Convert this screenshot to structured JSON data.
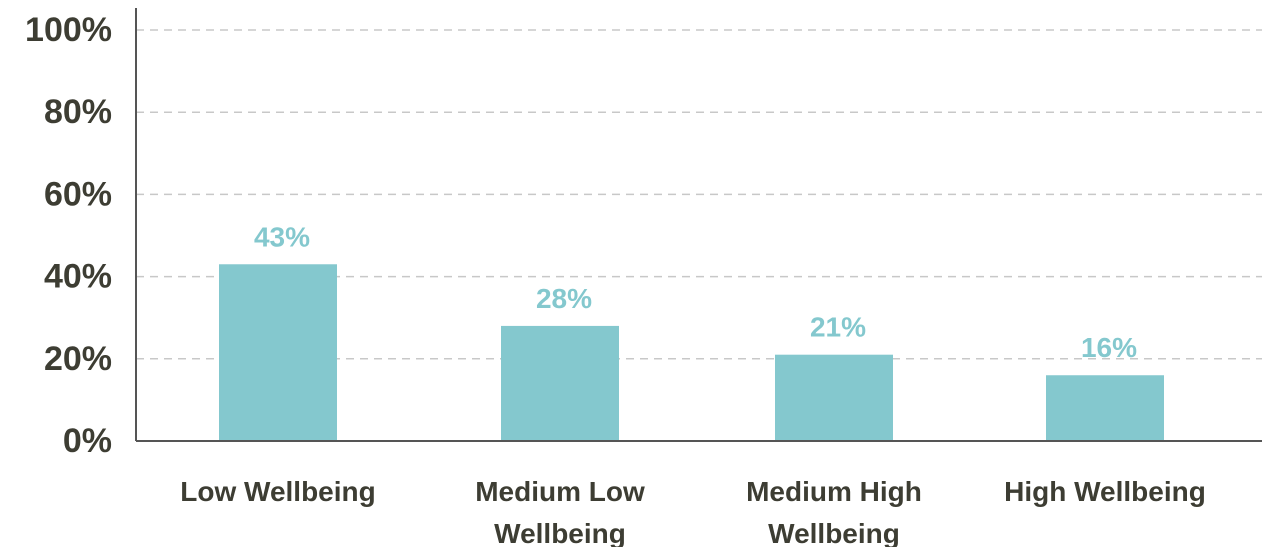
{
  "chart_data": {
    "type": "bar",
    "categories": [
      [
        "Low Wellbeing"
      ],
      [
        "Medium Low",
        "Wellbeing"
      ],
      [
        "Medium High",
        "Wellbeing"
      ],
      [
        "High Wellbeing"
      ]
    ],
    "values": [
      43,
      28,
      21,
      16
    ],
    "data_labels": [
      "43%",
      "28%",
      "21%",
      "16%"
    ],
    "ylim": [
      0,
      100
    ],
    "y_ticks": [
      {
        "value": 0,
        "label": "0%"
      },
      {
        "value": 20,
        "label": "20%"
      },
      {
        "value": 40,
        "label": "40%"
      },
      {
        "value": 60,
        "label": "60%"
      },
      {
        "value": 80,
        "label": "80%"
      },
      {
        "value": 100,
        "label": "100%"
      }
    ],
    "grid": true,
    "colors": {
      "bar": "#84c8ce",
      "label": "#84c8ce",
      "text": "#3d3d33"
    }
  }
}
